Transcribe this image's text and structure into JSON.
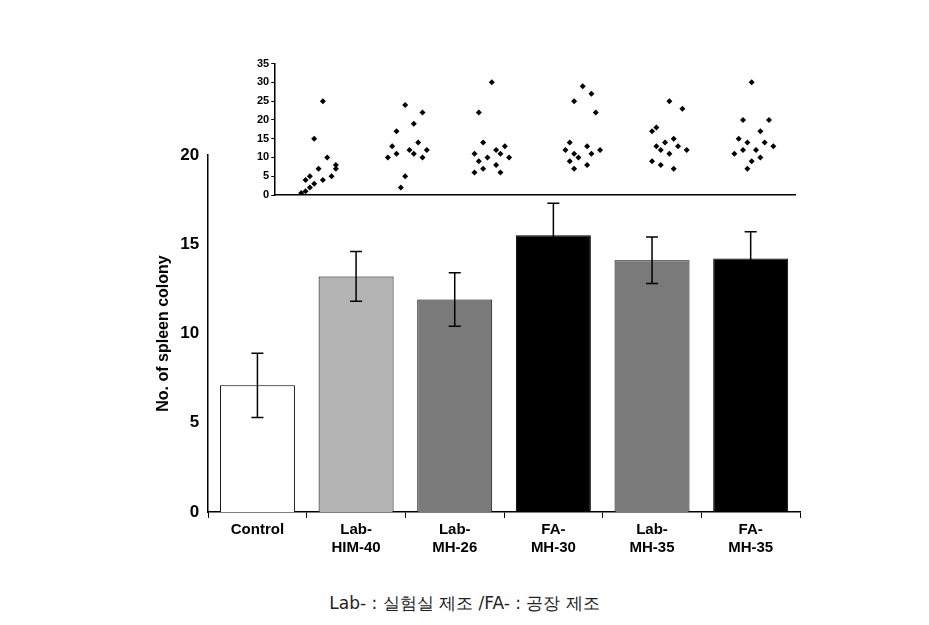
{
  "chart_data": [
    {
      "type": "bar",
      "y_label": "No. of spleen colony",
      "categories": [
        "Control",
        "Lab-HIM-40",
        "Lab-MH-26",
        "FA-MH-30",
        "Lab-MH-35",
        "FA-MH-35"
      ],
      "values": [
        7.1,
        13.2,
        11.9,
        15.5,
        14.1,
        14.2
      ],
      "errors": [
        1.8,
        1.4,
        1.5,
        1.8,
        1.3,
        1.5
      ],
      "colors": [
        "#ffffff",
        "#b4b4b4",
        "#7a7a7a",
        "#000000",
        "#7a7a7a",
        "#000000"
      ],
      "ylim": [
        0,
        20
      ],
      "yticks": [
        0,
        5,
        10,
        15,
        20
      ],
      "grid": false,
      "annotation": "Lab- : 실험실 제조 /FA- : 공장 제조"
    },
    {
      "type": "scatter",
      "x": [
        1.05,
        0.95,
        1.1,
        1.2,
        1.0,
        0.9,
        1.15,
        0.85,
        1.05,
        0.95,
        0.9,
        0.85,
        0.8,
        1.2,
        2.0,
        2.2,
        2.1,
        1.9,
        2.15,
        1.85,
        2.05,
        2.25,
        1.9,
        2.1,
        1.8,
        2.2,
        2.0,
        1.95,
        3.0,
        2.85,
        2.9,
        3.15,
        3.05,
        2.8,
        3.1,
        2.95,
        3.2,
        2.85,
        3.05,
        2.9,
        2.8,
        3.1,
        4.05,
        4.15,
        3.95,
        4.2,
        3.9,
        4.1,
        3.85,
        4.25,
        3.95,
        4.15,
        4.0,
        3.9,
        4.1,
        3.95,
        5.05,
        5.2,
        4.9,
        4.85,
        5.1,
        5.0,
        5.15,
        4.9,
        5.25,
        4.95,
        5.05,
        4.85,
        4.95,
        5.1,
        6.0,
        6.2,
        5.9,
        6.1,
        5.85,
        6.15,
        5.95,
        6.25,
        5.9,
        6.05,
        5.8,
        6.1,
        6.0,
        5.95
      ],
      "values": [
        25,
        15,
        10,
        8,
        7,
        5,
        5,
        4,
        4,
        3,
        2,
        1,
        0.5,
        7,
        24,
        22,
        19,
        17,
        14,
        13,
        12,
        12,
        11,
        11,
        10,
        10,
        5,
        2,
        30,
        22,
        14,
        13,
        12,
        11,
        11,
        10,
        10,
        9,
        8,
        7,
        6,
        6,
        29,
        27,
        25,
        22,
        14,
        13,
        12,
        12,
        11,
        11,
        10,
        9,
        8,
        7,
        25,
        23,
        18,
        17,
        15,
        14,
        13,
        13,
        12,
        12,
        11,
        9,
        8,
        7,
        30,
        20,
        20,
        17,
        15,
        14,
        14,
        13,
        12,
        12,
        11,
        10,
        9,
        7
      ],
      "color": "#000000",
      "marker": "diamond",
      "xlim": [
        0.5,
        6.5
      ],
      "ylim": [
        0,
        35
      ],
      "yticks": [
        0,
        5,
        10,
        15,
        20,
        25,
        30,
        35
      ],
      "tick_labels": "y",
      "grid": false
    }
  ]
}
